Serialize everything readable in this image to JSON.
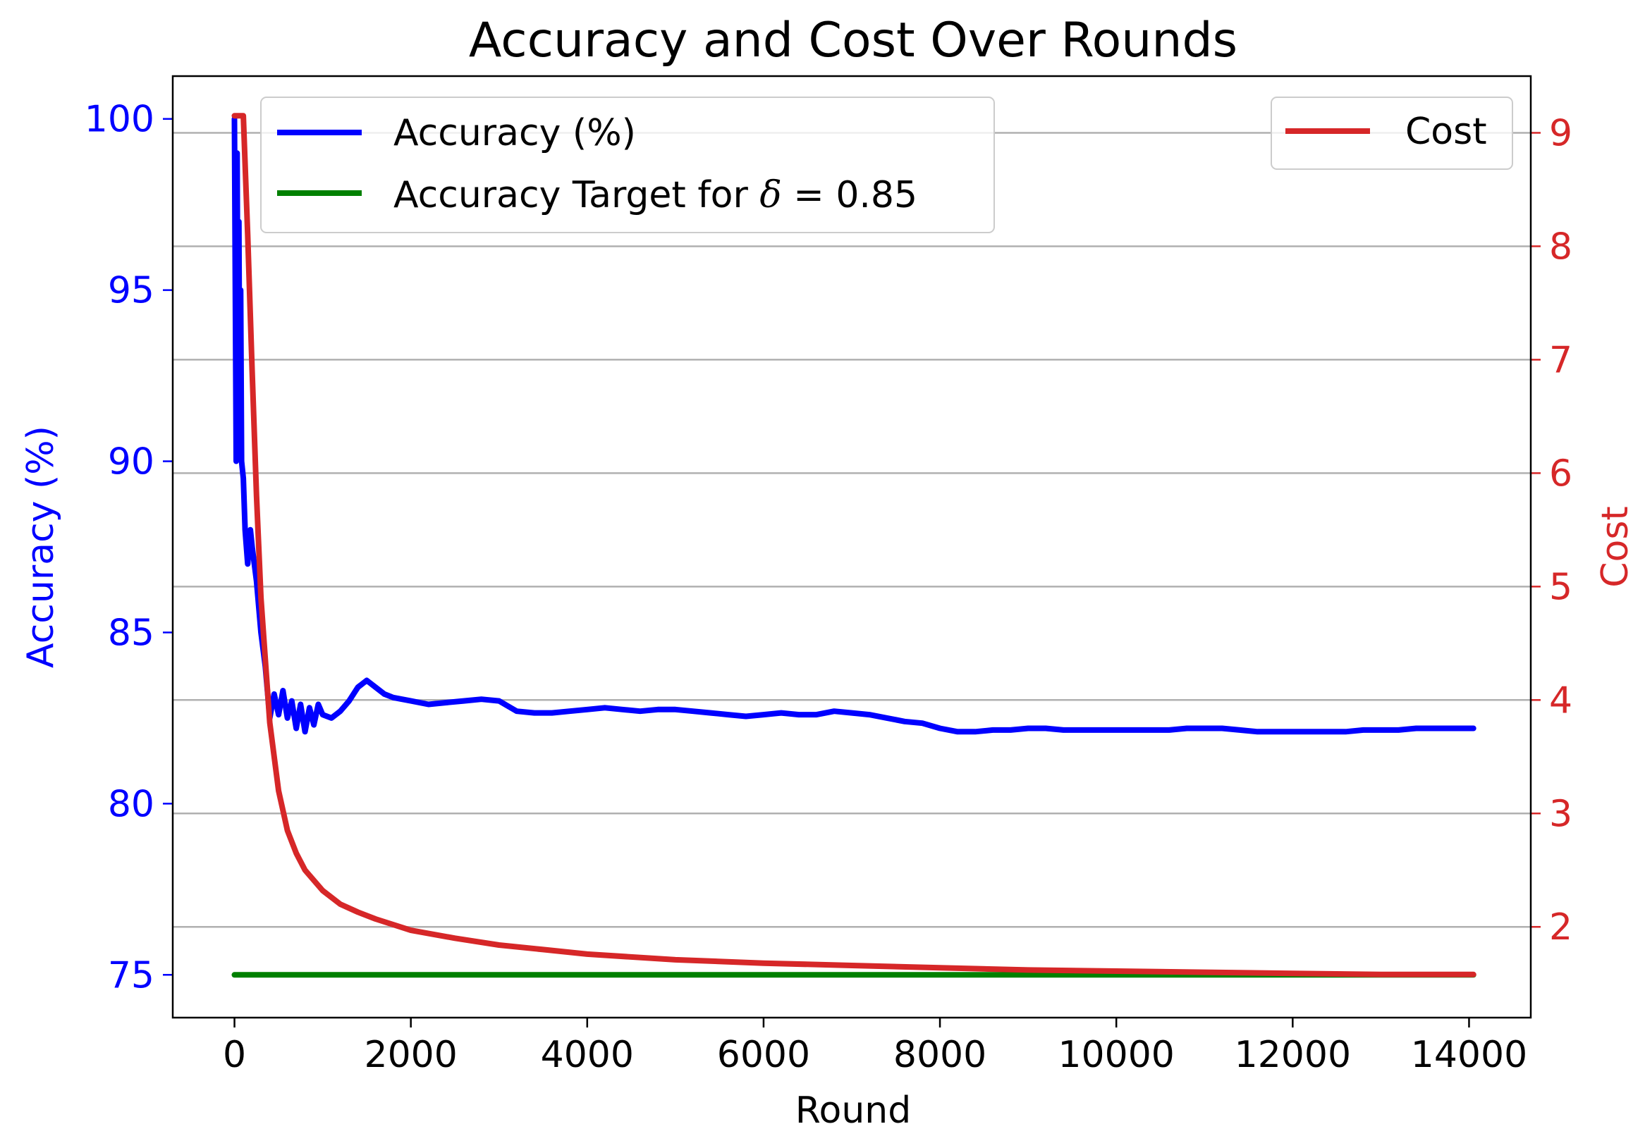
{
  "chart_data": {
    "type": "line",
    "title": "Accuracy and Cost Over Rounds",
    "xlabel": "Round",
    "ylabel_left": "Accuracy (%)",
    "ylabel_right": "Cost",
    "xlim": [
      -700,
      14700
    ],
    "ylim_left": [
      73.75,
      101.25
    ],
    "ylim_right": [
      1.2,
      9.5
    ],
    "x_ticks": [
      0,
      2000,
      4000,
      6000,
      8000,
      10000,
      12000,
      14000
    ],
    "x_tick_labels": [
      "0",
      "2000",
      "4000",
      "6000",
      "8000",
      "10000",
      "12000",
      "14000"
    ],
    "y_left_ticks": [
      75,
      80,
      85,
      90,
      95,
      100
    ],
    "y_left_tick_labels": [
      "75",
      "80",
      "85",
      "90",
      "95",
      "100"
    ],
    "y_right_ticks": [
      2,
      3,
      4,
      5,
      6,
      7,
      8,
      9
    ],
    "y_right_tick_labels": [
      "2",
      "3",
      "4",
      "5",
      "6",
      "7",
      "8",
      "9"
    ],
    "grid": "horizontal, right axis",
    "colors": {
      "accuracy": "#0000ff",
      "target": "#008000",
      "cost": "#d62728",
      "grid": "#b0b0b0"
    },
    "legend_left": {
      "placement": "upper-left",
      "entries": [
        {
          "label": "Accuracy (%)",
          "series": "accuracy"
        },
        {
          "label": "Accuracy Target for ",
          "delta_symbol": "δ",
          "eq": " = 0.85",
          "series": "target"
        }
      ]
    },
    "legend_right": {
      "placement": "upper-right",
      "entries": [
        {
          "label": "Cost",
          "series": "cost"
        }
      ]
    },
    "series": [
      {
        "name": "Accuracy (%)",
        "key": "accuracy",
        "axis": "left",
        "x": [
          0,
          20,
          30,
          40,
          50,
          60,
          70,
          80,
          100,
          120,
          150,
          180,
          200,
          250,
          300,
          350,
          400,
          450,
          500,
          550,
          600,
          650,
          700,
          750,
          800,
          850,
          900,
          950,
          1000,
          1100,
          1200,
          1300,
          1400,
          1500,
          1600,
          1700,
          1800,
          2000,
          2200,
          2400,
          2600,
          2800,
          3000,
          3200,
          3400,
          3600,
          3800,
          4000,
          4200,
          4400,
          4600,
          4800,
          5000,
          5200,
          5400,
          5600,
          5800,
          6000,
          6200,
          6400,
          6600,
          6800,
          7000,
          7200,
          7400,
          7600,
          7800,
          8000,
          8200,
          8400,
          8600,
          8800,
          9000,
          9200,
          9400,
          9600,
          9800,
          10000,
          10200,
          10400,
          10600,
          10800,
          11000,
          11200,
          11400,
          11600,
          11800,
          12000,
          12200,
          12400,
          12600,
          12800,
          13000,
          13200,
          13400,
          13600,
          13800,
          14050
        ],
        "values": [
          100,
          90,
          99,
          92,
          97,
          91,
          95,
          90,
          89.5,
          88,
          87,
          88,
          87.5,
          86.5,
          85,
          84,
          82.5,
          83.2,
          82.6,
          83.3,
          82.5,
          83,
          82.2,
          82.9,
          82.1,
          82.8,
          82.3,
          82.9,
          82.6,
          82.5,
          82.7,
          83,
          83.4,
          83.6,
          83.4,
          83.2,
          83.1,
          83,
          82.9,
          82.95,
          83,
          83.05,
          83,
          82.7,
          82.65,
          82.65,
          82.7,
          82.75,
          82.8,
          82.75,
          82.7,
          82.75,
          82.75,
          82.7,
          82.65,
          82.6,
          82.55,
          82.6,
          82.65,
          82.6,
          82.6,
          82.7,
          82.65,
          82.6,
          82.5,
          82.4,
          82.35,
          82.2,
          82.1,
          82.1,
          82.15,
          82.15,
          82.2,
          82.2,
          82.15,
          82.15,
          82.15,
          82.15,
          82.15,
          82.15,
          82.15,
          82.2,
          82.2,
          82.2,
          82.15,
          82.1,
          82.1,
          82.1,
          82.1,
          82.1,
          82.1,
          82.15,
          82.15,
          82.15,
          82.2,
          82.2,
          82.2,
          82.2
        ]
      },
      {
        "name": "Accuracy Target for δ = 0.85",
        "key": "target",
        "axis": "left",
        "x": [
          0,
          14050
        ],
        "values": [
          75,
          75
        ]
      },
      {
        "name": "Cost",
        "key": "cost",
        "axis": "right",
        "x": [
          0,
          100,
          150,
          200,
          250,
          300,
          400,
          500,
          600,
          700,
          800,
          1000,
          1200,
          1400,
          1600,
          2000,
          2500,
          3000,
          3500,
          4000,
          5000,
          6000,
          7000,
          8000,
          9000,
          10000,
          11000,
          12000,
          13000,
          14050
        ],
        "values": [
          9.15,
          9.15,
          8.1,
          6.9,
          5.8,
          4.9,
          3.8,
          3.2,
          2.85,
          2.65,
          2.5,
          2.32,
          2.2,
          2.13,
          2.07,
          1.97,
          1.9,
          1.84,
          1.8,
          1.76,
          1.71,
          1.68,
          1.66,
          1.64,
          1.62,
          1.61,
          1.6,
          1.59,
          1.58,
          1.58
        ]
      }
    ]
  }
}
